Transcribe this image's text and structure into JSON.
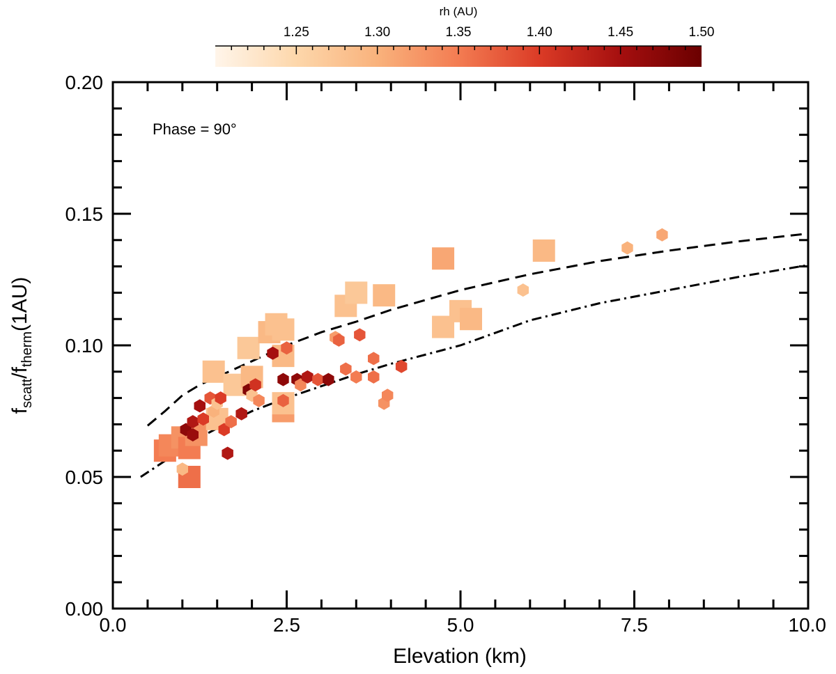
{
  "chart_data": {
    "type": "scatter",
    "title": "",
    "xlabel": "Elevation  (km)",
    "ylabel_parts": {
      "f1": "f",
      "sub1": "scatt",
      "slash": "/f",
      "sub2": "therm",
      "tail": "(1AU)"
    },
    "xlim": [
      0.0,
      10.0
    ],
    "ylim": [
      0.0,
      0.2
    ],
    "xticks": [
      "0.0",
      "2.5",
      "5.0",
      "7.5",
      "10.0"
    ],
    "yticks": [
      "0.00",
      "0.05",
      "0.10",
      "0.15",
      "0.20"
    ],
    "annotation": "Phase = 90°",
    "colorbar": {
      "label": "rh (AU)",
      "range": [
        1.2,
        1.5
      ],
      "ticks": [
        "1.25",
        "1.30",
        "1.35",
        "1.40",
        "1.45",
        "1.50"
      ],
      "colors": [
        "#fff5ea",
        "#fdd7ab",
        "#f9b27c",
        "#f37c52",
        "#db3b26",
        "#a50f0f",
        "#6b0000"
      ]
    },
    "series": [
      {
        "marker": "square",
        "points": [
          {
            "x": 0.75,
            "y": 0.06,
            "rh": 1.35
          },
          {
            "x": 0.82,
            "y": 0.062,
            "rh": 1.34
          },
          {
            "x": 1.0,
            "y": 0.065,
            "rh": 1.33
          },
          {
            "x": 1.1,
            "y": 0.05,
            "rh": 1.36
          },
          {
            "x": 1.1,
            "y": 0.061,
            "rh": 1.35
          },
          {
            "x": 1.2,
            "y": 0.066,
            "rh": 1.33
          },
          {
            "x": 1.45,
            "y": 0.09,
            "rh": 1.28
          },
          {
            "x": 1.5,
            "y": 0.072,
            "rh": 1.28
          },
          {
            "x": 1.75,
            "y": 0.085,
            "rh": 1.27
          },
          {
            "x": 1.95,
            "y": 0.099,
            "rh": 1.27
          },
          {
            "x": 2.0,
            "y": 0.088,
            "rh": 1.29
          },
          {
            "x": 2.25,
            "y": 0.105,
            "rh": 1.29
          },
          {
            "x": 2.35,
            "y": 0.108,
            "rh": 1.28
          },
          {
            "x": 2.45,
            "y": 0.106,
            "rh": 1.28
          },
          {
            "x": 2.45,
            "y": 0.096,
            "rh": 1.29
          },
          {
            "x": 2.45,
            "y": 0.075,
            "rh": 1.32
          },
          {
            "x": 2.45,
            "y": 0.078,
            "rh": 1.28
          },
          {
            "x": 3.35,
            "y": 0.115,
            "rh": 1.28
          },
          {
            "x": 3.5,
            "y": 0.12,
            "rh": 1.27
          },
          {
            "x": 3.9,
            "y": 0.119,
            "rh": 1.29
          },
          {
            "x": 4.75,
            "y": 0.133,
            "rh": 1.31
          },
          {
            "x": 4.75,
            "y": 0.107,
            "rh": 1.28
          },
          {
            "x": 5.0,
            "y": 0.113,
            "rh": 1.28
          },
          {
            "x": 5.15,
            "y": 0.11,
            "rh": 1.29
          },
          {
            "x": 6.2,
            "y": 0.136,
            "rh": 1.29
          }
        ]
      },
      {
        "marker": "hexagon",
        "points": [
          {
            "x": 1.0,
            "y": 0.053,
            "rh": 1.29
          },
          {
            "x": 1.05,
            "y": 0.068,
            "rh": 1.47
          },
          {
            "x": 1.15,
            "y": 0.071,
            "rh": 1.44
          },
          {
            "x": 1.15,
            "y": 0.066,
            "rh": 1.46
          },
          {
            "x": 1.25,
            "y": 0.077,
            "rh": 1.45
          },
          {
            "x": 1.3,
            "y": 0.072,
            "rh": 1.4
          },
          {
            "x": 1.4,
            "y": 0.08,
            "rh": 1.38
          },
          {
            "x": 1.45,
            "y": 0.075,
            "rh": 1.3
          },
          {
            "x": 1.5,
            "y": 0.078,
            "rh": 1.28
          },
          {
            "x": 1.55,
            "y": 0.08,
            "rh": 1.4
          },
          {
            "x": 1.6,
            "y": 0.068,
            "rh": 1.4
          },
          {
            "x": 1.65,
            "y": 0.059,
            "rh": 1.44
          },
          {
            "x": 1.7,
            "y": 0.071,
            "rh": 1.36
          },
          {
            "x": 1.85,
            "y": 0.074,
            "rh": 1.44
          },
          {
            "x": 1.95,
            "y": 0.083,
            "rh": 1.48
          },
          {
            "x": 2.0,
            "y": 0.081,
            "rh": 1.28
          },
          {
            "x": 2.05,
            "y": 0.085,
            "rh": 1.41
          },
          {
            "x": 2.1,
            "y": 0.079,
            "rh": 1.34
          },
          {
            "x": 2.3,
            "y": 0.097,
            "rh": 1.45
          },
          {
            "x": 2.45,
            "y": 0.087,
            "rh": 1.47
          },
          {
            "x": 2.45,
            "y": 0.079,
            "rh": 1.37
          },
          {
            "x": 2.5,
            "y": 0.099,
            "rh": 1.37
          },
          {
            "x": 2.65,
            "y": 0.087,
            "rh": 1.47
          },
          {
            "x": 2.7,
            "y": 0.085,
            "rh": 1.34
          },
          {
            "x": 2.8,
            "y": 0.088,
            "rh": 1.44
          },
          {
            "x": 2.95,
            "y": 0.087,
            "rh": 1.38
          },
          {
            "x": 3.1,
            "y": 0.087,
            "rh": 1.47
          },
          {
            "x": 3.2,
            "y": 0.103,
            "rh": 1.32
          },
          {
            "x": 3.25,
            "y": 0.102,
            "rh": 1.37
          },
          {
            "x": 3.35,
            "y": 0.091,
            "rh": 1.36
          },
          {
            "x": 3.5,
            "y": 0.088,
            "rh": 1.35
          },
          {
            "x": 3.55,
            "y": 0.104,
            "rh": 1.38
          },
          {
            "x": 3.75,
            "y": 0.095,
            "rh": 1.36
          },
          {
            "x": 3.75,
            "y": 0.088,
            "rh": 1.36
          },
          {
            "x": 3.9,
            "y": 0.078,
            "rh": 1.33
          },
          {
            "x": 3.95,
            "y": 0.081,
            "rh": 1.34
          },
          {
            "x": 4.15,
            "y": 0.092,
            "rh": 1.39
          },
          {
            "x": 5.9,
            "y": 0.121,
            "rh": 1.28
          },
          {
            "x": 7.4,
            "y": 0.137,
            "rh": 1.3
          },
          {
            "x": 7.9,
            "y": 0.142,
            "rh": 1.31
          }
        ]
      }
    ],
    "curves": [
      {
        "style": "dashed",
        "points": [
          [
            0.5,
            0.0695
          ],
          [
            0.75,
            0.075
          ],
          [
            1.0,
            0.081
          ],
          [
            1.25,
            0.085
          ],
          [
            1.5,
            0.088
          ],
          [
            2.0,
            0.094
          ],
          [
            2.5,
            0.1
          ],
          [
            3.0,
            0.105
          ],
          [
            3.5,
            0.109
          ],
          [
            4.0,
            0.1135
          ],
          [
            5.0,
            0.121
          ],
          [
            6.0,
            0.127
          ],
          [
            7.0,
            0.132
          ],
          [
            8.0,
            0.136
          ],
          [
            9.0,
            0.1395
          ],
          [
            10.0,
            0.1425
          ]
        ]
      },
      {
        "style": "dash-dot",
        "points": [
          [
            0.4,
            0.05
          ],
          [
            0.6,
            0.0535
          ],
          [
            0.8,
            0.057
          ],
          [
            1.0,
            0.061
          ],
          [
            1.25,
            0.065
          ],
          [
            1.5,
            0.0685
          ],
          [
            2.0,
            0.075
          ],
          [
            2.5,
            0.08
          ],
          [
            3.0,
            0.0845
          ],
          [
            3.5,
            0.089
          ],
          [
            4.0,
            0.093
          ],
          [
            5.0,
            0.1
          ],
          [
            6.0,
            0.1095
          ],
          [
            7.0,
            0.116
          ],
          [
            8.0,
            0.121
          ],
          [
            9.0,
            0.126
          ],
          [
            10.0,
            0.1305
          ]
        ]
      }
    ]
  }
}
